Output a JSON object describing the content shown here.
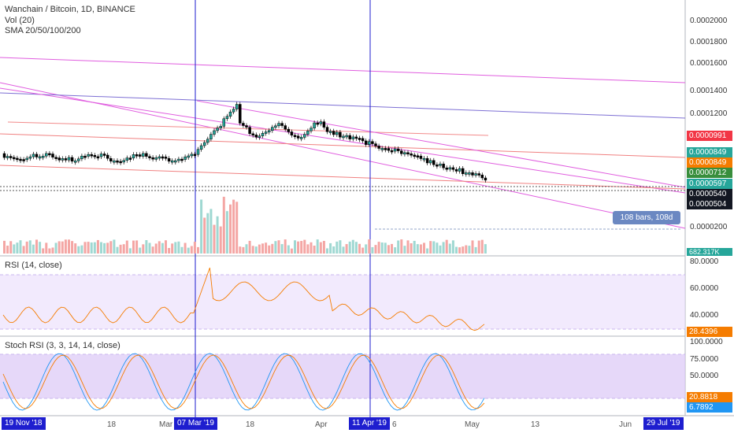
{
  "legend": {
    "symbol": "Wanchain / Bitcoin, 1D, BINANCE",
    "vol": "Vol (20)",
    "sma": "SMA 20/50/100/200"
  },
  "rsi_label": "RSI (14, close)",
  "stoch_label": "Stoch RSI (3, 3, 14, 14, close)",
  "price_axis": [
    "0.0002000",
    "0.0001800",
    "0.0001600",
    "0.0001400",
    "0.0001200",
    "0.0000200"
  ],
  "price_tags": [
    {
      "text": "0.0000991",
      "color": "#f23645"
    },
    {
      "text": "0.0000849",
      "color": "#26a69a"
    },
    {
      "text": "0.0000849",
      "color": "#f57c00"
    },
    {
      "text": "0.0000712",
      "color": "#388e3c"
    },
    {
      "text": "0.0000597",
      "color": "#26a69a"
    },
    {
      "text": "0.0000540",
      "color": "#131722"
    },
    {
      "text": "0.0000504",
      "color": "#131722"
    }
  ],
  "vol_tag": "682.317K",
  "rsi_axis": [
    "80.0000",
    "60.0000",
    "40.0000"
  ],
  "rsi_tag": "28.4396",
  "stoch_axis": [
    "100.0000",
    "75.0000",
    "50.0000"
  ],
  "stoch_tags": [
    "20.8818",
    "6.7892"
  ],
  "bars_badge": "108 bars, 108d",
  "bottom_tags": [
    "19 Nov '18",
    "07 Mar '19",
    "11 Apr '19",
    "29 Jul '19"
  ],
  "date_labels": [
    "18",
    "Mar",
    "18",
    "Apr",
    "6",
    "May",
    "13",
    "Jun"
  ],
  "colors": {
    "up": "#26a69a",
    "down": "#ef5350",
    "vline": "#1e1ecf",
    "rsi": "#f57c00",
    "stochK": "#2196f3",
    "stochD": "#f57c00",
    "fill": "#e9dcfb"
  }
}
